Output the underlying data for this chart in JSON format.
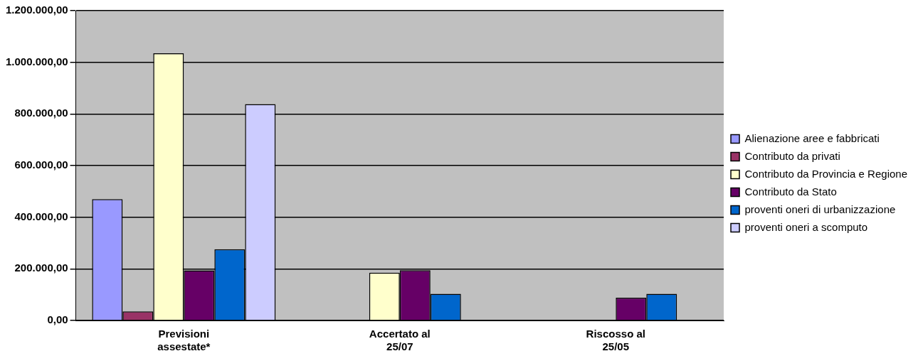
{
  "chart_data": {
    "type": "bar",
    "categories": [
      "Previsioni assestate*",
      "Accertato al 25/07",
      "Riscosso al 25/05"
    ],
    "series": [
      {
        "name": "Alienazione aree e fabbricati",
        "color": "#9999ff",
        "values": [
          470000,
          0,
          0
        ]
      },
      {
        "name": "Contributo da privati",
        "color": "#993366",
        "values": [
          35000,
          0,
          0
        ]
      },
      {
        "name": "Contributo da Provincia e Regione",
        "color": "#ffffcc",
        "values": [
          1035000,
          185000,
          0
        ]
      },
      {
        "name": "Contributo da Stato",
        "color": "#660066",
        "values": [
          194000,
          195000,
          88000
        ]
      },
      {
        "name": "proventi oneri di urbanizzazione",
        "color": "#0066cc",
        "values": [
          276000,
          103000,
          103000
        ]
      },
      {
        "name": "proventi oneri a scomputo",
        "color": "#ccccff",
        "values": [
          838000,
          0,
          0
        ]
      }
    ],
    "ylim": [
      0,
      1200000
    ],
    "yticks": [
      {
        "value": 0,
        "label": "0,00"
      },
      {
        "value": 200000,
        "label": "200.000,00"
      },
      {
        "value": 400000,
        "label": "400.000,00"
      },
      {
        "value": 600000,
        "label": "600.000,00"
      },
      {
        "value": 800000,
        "label": "800.000,00"
      },
      {
        "value": 1000000,
        "label": "1.000.000,00"
      },
      {
        "value": 1200000,
        "label": "1.200.000,00"
      }
    ],
    "grid": "y",
    "legend": "right"
  }
}
